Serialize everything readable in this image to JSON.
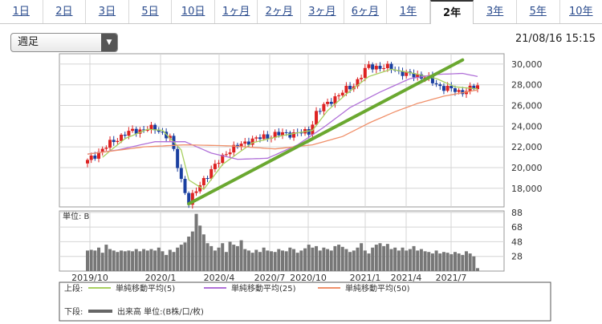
{
  "tabs": [
    {
      "label": "1日",
      "active": false
    },
    {
      "label": "2日",
      "active": false
    },
    {
      "label": "3日",
      "active": false
    },
    {
      "label": "5日",
      "active": false
    },
    {
      "label": "10日",
      "active": false
    },
    {
      "label": "1ヶ月",
      "active": false
    },
    {
      "label": "2ヶ月",
      "active": false
    },
    {
      "label": "3ヶ月",
      "active": false
    },
    {
      "label": "6ヶ月",
      "active": false
    },
    {
      "label": "1年",
      "active": false
    },
    {
      "label": "2年",
      "active": true
    },
    {
      "label": "3年",
      "active": false
    },
    {
      "label": "5年",
      "active": false
    },
    {
      "label": "10年",
      "active": false
    }
  ],
  "period_select": {
    "value": "週足"
  },
  "timestamp": "21/08/16 15:15",
  "colors": {
    "up": "#dd2222",
    "down": "#1a3fa0",
    "ma5": "#a8d060",
    "ma25": "#b070d8",
    "ma50": "#f0906a",
    "trendline": "#6aa830",
    "volume": "#777777"
  },
  "chart_data": [
    {
      "type": "candlestick",
      "title": "",
      "x_ticks": [
        "2019/10",
        "2020/1",
        "2020/4",
        "2020/7",
        "2020/10",
        "2021/1",
        "2021/4",
        "2021/7"
      ],
      "y_ticks": [
        18000,
        20000,
        22000,
        24000,
        26000,
        28000,
        30000
      ],
      "ylim": [
        16200,
        31000
      ],
      "grid": true,
      "weeks": 105,
      "close_keypoints": [
        [
          0,
          20600
        ],
        [
          4,
          21800
        ],
        [
          10,
          23300
        ],
        [
          16,
          23800
        ],
        [
          19,
          23600
        ],
        [
          22,
          22900
        ],
        [
          25,
          18800
        ],
        [
          27,
          16600
        ],
        [
          31,
          18900
        ],
        [
          33,
          19700
        ],
        [
          37,
          21500
        ],
        [
          43,
          22600
        ],
        [
          50,
          23200
        ],
        [
          59,
          23400
        ],
        [
          61,
          25300
        ],
        [
          66,
          26800
        ],
        [
          71,
          28000
        ],
        [
          75,
          29800
        ],
        [
          81,
          29600
        ],
        [
          85,
          29000
        ],
        [
          90,
          28800
        ],
        [
          93,
          28000
        ],
        [
          99,
          27300
        ],
        [
          104,
          27800
        ]
      ],
      "ma_series": [
        {
          "name": "単純移動平均(5)",
          "color": "#a8d060",
          "keypoints": [
            [
              4,
              21000
            ],
            [
              10,
              22800
            ],
            [
              16,
              23700
            ],
            [
              20,
              23600
            ],
            [
              25,
              21700
            ],
            [
              27,
              18800
            ],
            [
              31,
              17900
            ],
            [
              36,
              20300
            ],
            [
              44,
              22400
            ],
            [
              52,
              23100
            ],
            [
              60,
              23600
            ],
            [
              64,
              25500
            ],
            [
              69,
              27100
            ],
            [
              75,
              28800
            ],
            [
              81,
              29500
            ],
            [
              87,
              29100
            ],
            [
              93,
              28600
            ],
            [
              98,
              27800
            ],
            [
              104,
              27600
            ]
          ]
        },
        {
          "name": "単純移動平均(25)",
          "color": "#b070d8",
          "keypoints": [
            [
              0,
              21300
            ],
            [
              8,
              21700
            ],
            [
              18,
              22500
            ],
            [
              26,
              22500
            ],
            [
              33,
              21400
            ],
            [
              40,
              20800
            ],
            [
              48,
              20900
            ],
            [
              56,
              22200
            ],
            [
              63,
              23900
            ],
            [
              70,
              25800
            ],
            [
              78,
              27300
            ],
            [
              86,
              28600
            ],
            [
              93,
              29000
            ],
            [
              100,
              29100
            ],
            [
              104,
              28800
            ]
          ]
        },
        {
          "name": "単純移動平均(50)",
          "color": "#f0906a",
          "keypoints": [
            [
              0,
              21300
            ],
            [
              15,
              22000
            ],
            [
              26,
              22200
            ],
            [
              38,
              22100
            ],
            [
              50,
              21800
            ],
            [
              60,
              22200
            ],
            [
              68,
              23000
            ],
            [
              75,
              24300
            ],
            [
              82,
              25400
            ],
            [
              88,
              26200
            ],
            [
              95,
              26900
            ],
            [
              104,
              27500
            ]
          ]
        }
      ],
      "trendline": {
        "start": [
          27,
          16500
        ],
        "end": [
          100,
          30400
        ]
      }
    },
    {
      "type": "bar",
      "unit_label": "単位: B",
      "y_ticks": [
        28,
        48,
        68,
        88
      ],
      "ylim": [
        8,
        90
      ],
      "values": [
        36,
        37,
        36,
        40,
        33,
        44,
        38,
        36,
        34,
        36,
        35,
        36,
        35,
        38,
        35,
        38,
        36,
        38,
        36,
        40,
        35,
        30,
        37,
        34,
        40,
        44,
        47,
        55,
        62,
        86,
        70,
        58,
        46,
        42,
        36,
        40,
        46,
        34,
        48,
        44,
        42,
        50,
        38,
        36,
        33,
        37,
        34,
        40,
        36,
        35,
        34,
        38,
        36,
        35,
        40,
        38,
        33,
        36,
        39,
        44,
        40,
        42,
        36,
        40,
        38,
        36,
        42,
        44,
        41,
        38,
        34,
        36,
        40,
        46,
        36,
        32,
        40,
        44,
        46,
        42,
        45,
        38,
        40,
        36,
        40,
        36,
        38,
        42,
        36,
        38,
        35,
        34,
        32,
        36,
        32,
        34,
        33,
        31,
        34,
        32,
        30,
        35,
        32,
        28,
        12
      ],
      "legend": {
        "upper_label": "上段:",
        "lower_label": "下段:",
        "volume_series": "出来高 単位:(B株/口/枚)"
      }
    }
  ]
}
